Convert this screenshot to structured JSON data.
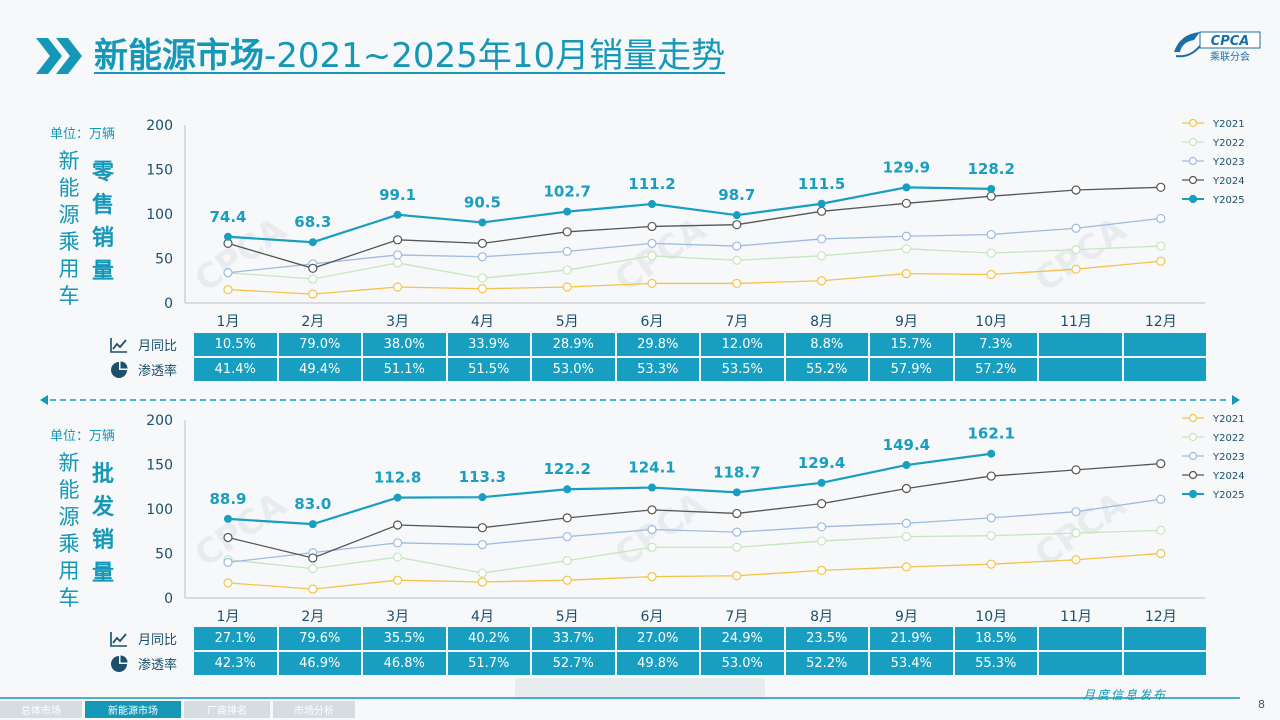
{
  "header": {
    "title_bold": "新能源市场",
    "title_rest": "-2021~2025年10月销量走势",
    "logo_text": "CPCA",
    "logo_sub": "乘联分会"
  },
  "watermark": "CPCA",
  "colors": {
    "Y2021": "#f5c24a",
    "Y2022": "#c6e6bf",
    "Y2023": "#9dbbe3",
    "Y2024": "#555555",
    "Y2025": "#189ec0",
    "accent": "#1597b8"
  },
  "icons": {
    "yoy": "line-chart-icon",
    "penetration": "pie-chart-icon"
  },
  "retail": {
    "unit": "单位：万辆",
    "vtitle_left": "新能源乘用车",
    "vtitle_right": "零售销量",
    "row_labels": {
      "yoy": "月同比",
      "penetration": "渗透率"
    },
    "yoy": [
      "10.5%",
      "79.0%",
      "38.0%",
      "33.9%",
      "28.9%",
      "29.8%",
      "12.0%",
      "8.8%",
      "15.7%",
      "7.3%",
      "",
      ""
    ],
    "penetration": [
      "41.4%",
      "49.4%",
      "51.1%",
      "51.5%",
      "53.0%",
      "53.3%",
      "53.5%",
      "55.2%",
      "57.9%",
      "57.2%",
      "",
      ""
    ]
  },
  "wholesale": {
    "unit": "单位：万辆",
    "vtitle_left": "新能源乘用车",
    "vtitle_right": "批发销量",
    "row_labels": {
      "yoy": "月同比",
      "penetration": "渗透率"
    },
    "yoy": [
      "27.1%",
      "79.6%",
      "35.5%",
      "40.2%",
      "33.7%",
      "27.0%",
      "24.9%",
      "23.5%",
      "21.9%",
      "18.5%",
      "",
      ""
    ],
    "penetration": [
      "42.3%",
      "46.9%",
      "46.8%",
      "51.7%",
      "52.7%",
      "49.8%",
      "53.0%",
      "52.2%",
      "53.4%",
      "55.3%",
      "",
      ""
    ]
  },
  "chart_data": [
    {
      "type": "line",
      "title": "零售销量",
      "ylabel": "单位：万辆",
      "ylim": [
        0,
        200
      ],
      "yticks": [
        0,
        50,
        100,
        150,
        200
      ],
      "categories": [
        "1月",
        "2月",
        "3月",
        "4月",
        "5月",
        "6月",
        "7月",
        "8月",
        "9月",
        "10月",
        "11月",
        "12月"
      ],
      "legend_position": "right",
      "series": [
        {
          "name": "Y2021",
          "values": [
            15,
            10,
            18,
            16,
            18,
            22,
            22,
            25,
            33,
            32,
            38,
            47
          ]
        },
        {
          "name": "Y2022",
          "values": [
            34,
            27,
            45,
            28,
            37,
            53,
            48,
            53,
            61,
            56,
            60,
            64
          ]
        },
        {
          "name": "Y2023",
          "values": [
            34,
            44,
            54,
            52,
            58,
            67,
            64,
            72,
            75,
            77,
            84,
            95
          ]
        },
        {
          "name": "Y2024",
          "values": [
            67,
            39,
            71,
            67,
            80,
            86,
            88,
            103,
            112,
            120,
            127,
            130
          ]
        },
        {
          "name": "Y2025",
          "values": [
            74.4,
            68.3,
            99.1,
            90.5,
            102.7,
            111.2,
            98.7,
            111.5,
            129.9,
            128.2,
            null,
            null
          ],
          "labels": true
        }
      ]
    },
    {
      "type": "line",
      "title": "批发销量",
      "ylabel": "单位：万辆",
      "ylim": [
        0,
        200
      ],
      "yticks": [
        0,
        50,
        100,
        150,
        200
      ],
      "categories": [
        "1月",
        "2月",
        "3月",
        "4月",
        "5月",
        "6月",
        "7月",
        "8月",
        "9月",
        "10月",
        "11月",
        "12月"
      ],
      "legend_position": "right",
      "series": [
        {
          "name": "Y2021",
          "values": [
            17,
            10,
            20,
            18,
            20,
            24,
            25,
            31,
            35,
            38,
            43,
            50
          ]
        },
        {
          "name": "Y2022",
          "values": [
            43,
            33,
            46,
            28,
            42,
            57,
            57,
            64,
            69,
            70,
            73,
            76
          ]
        },
        {
          "name": "Y2023",
          "values": [
            40,
            51,
            62,
            60,
            69,
            77,
            74,
            80,
            84,
            90,
            97,
            111
          ]
        },
        {
          "name": "Y2024",
          "values": [
            68,
            45,
            82,
            79,
            90,
            99,
            95,
            106,
            123,
            137,
            144,
            151
          ]
        },
        {
          "name": "Y2025",
          "values": [
            88.9,
            83.0,
            112.8,
            113.3,
            122.2,
            124.1,
            118.7,
            129.4,
            149.4,
            162.1,
            null,
            null
          ],
          "labels": true
        }
      ]
    }
  ],
  "footer": {
    "tabs": [
      "总体市场",
      "新能源市场",
      "厂商排名",
      "市场分析"
    ],
    "active_tab": 1,
    "publish": "月度信息发布",
    "page": "8"
  }
}
